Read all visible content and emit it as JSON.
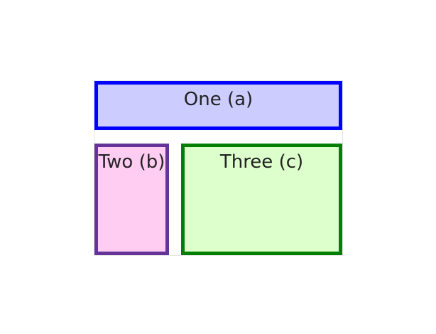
{
  "colors": {
    "cell_a_border": "#0000ff",
    "cell_a_background": "#ccccff",
    "cell_b_border": "#663399",
    "cell_b_background": "#ffccf2",
    "cell_c_border": "#008000",
    "cell_c_background": "#ddffcc"
  },
  "grid": {
    "cells": [
      {
        "label": "One (a)"
      },
      {
        "label": "Two (b)"
      },
      {
        "label": "Three (c)"
      }
    ]
  }
}
